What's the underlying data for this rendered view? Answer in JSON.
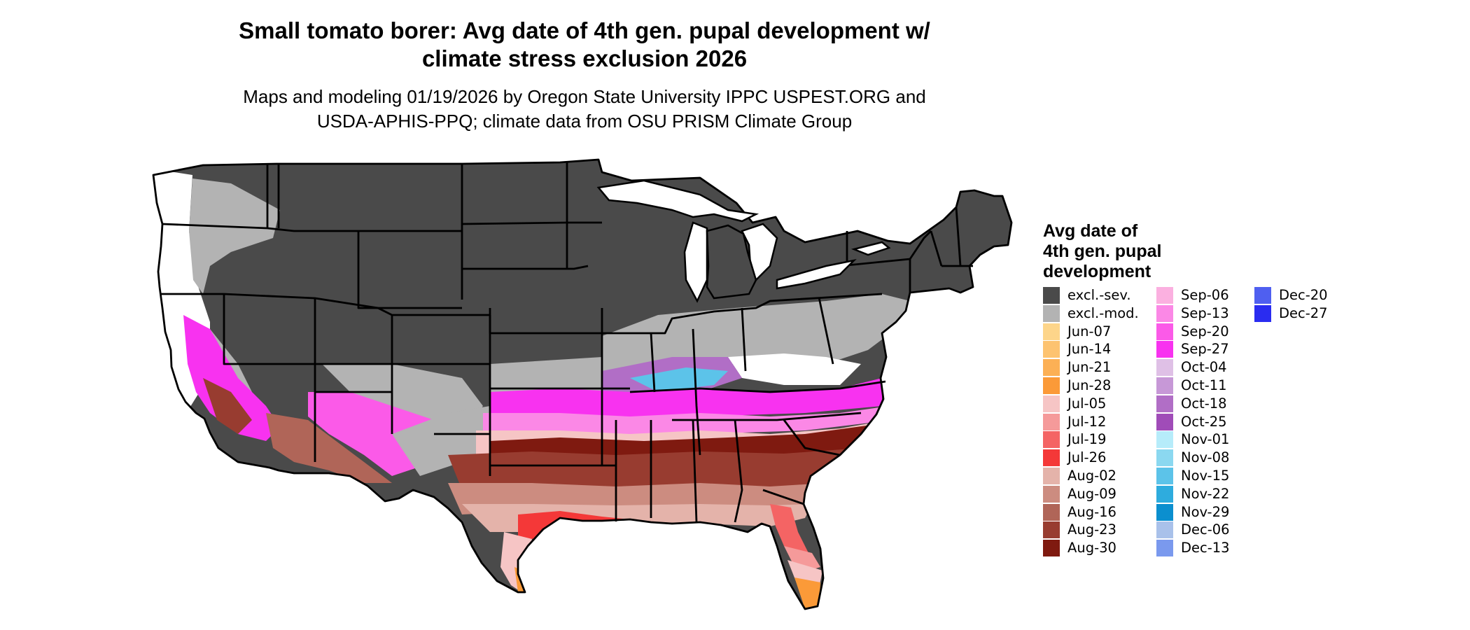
{
  "title_line1": "Small tomato borer: Avg date of 4th gen. pupal development w/",
  "title_line2": "climate stress exclusion 2026",
  "subtitle_line1": "Maps and modeling 01/19/2026 by Oregon State University IPPC USPEST.ORG and",
  "subtitle_line2": "USDA-APHIS-PPQ; climate data from OSU PRISM Climate Group",
  "legend": {
    "title_lines": [
      "Avg date of",
      "4th gen. pupal",
      "development"
    ],
    "items": [
      {
        "label": "excl.-sev.",
        "color": "#4a4a4a"
      },
      {
        "label": "excl.-mod.",
        "color": "#b3b3b3"
      },
      {
        "label": "Jun-07",
        "color": "#fdd58a"
      },
      {
        "label": "Jun-14",
        "color": "#fdc370"
      },
      {
        "label": "Jun-21",
        "color": "#fcb055"
      },
      {
        "label": "Jun-28",
        "color": "#fb9a38"
      },
      {
        "label": "Jul-05",
        "color": "#f6c5c5"
      },
      {
        "label": "Jul-12",
        "color": "#f59a9a"
      },
      {
        "label": "Jul-19",
        "color": "#f46464"
      },
      {
        "label": "Jul-26",
        "color": "#f43838"
      },
      {
        "label": "Aug-02",
        "color": "#e4b3aa"
      },
      {
        "label": "Aug-09",
        "color": "#cc8c80"
      },
      {
        "label": "Aug-16",
        "color": "#b06558"
      },
      {
        "label": "Aug-23",
        "color": "#983c30"
      },
      {
        "label": "Aug-30",
        "color": "#7f1a10"
      },
      {
        "label": "Sep-06",
        "color": "#fbb0e0"
      },
      {
        "label": "Sep-13",
        "color": "#fb88e6"
      },
      {
        "label": "Sep-20",
        "color": "#fb5ae8"
      },
      {
        "label": "Sep-27",
        "color": "#f832f0"
      },
      {
        "label": "Oct-04",
        "color": "#dfc0e6"
      },
      {
        "label": "Oct-11",
        "color": "#c798d7"
      },
      {
        "label": "Oct-18",
        "color": "#b16ec6"
      },
      {
        "label": "Oct-25",
        "color": "#a04cb8"
      },
      {
        "label": "Nov-01",
        "color": "#b6ecfa"
      },
      {
        "label": "Nov-08",
        "color": "#8bd8f0"
      },
      {
        "label": "Nov-15",
        "color": "#5cc3e9"
      },
      {
        "label": "Nov-22",
        "color": "#2eacde"
      },
      {
        "label": "Nov-29",
        "color": "#0b8fcf"
      },
      {
        "label": "Dec-06",
        "color": "#a9c1ea"
      },
      {
        "label": "Dec-13",
        "color": "#7a99ee"
      },
      {
        "label": "Dec-20",
        "color": "#4f5ff0"
      },
      {
        "label": "Dec-27",
        "color": "#2a2cf0"
      }
    ]
  }
}
